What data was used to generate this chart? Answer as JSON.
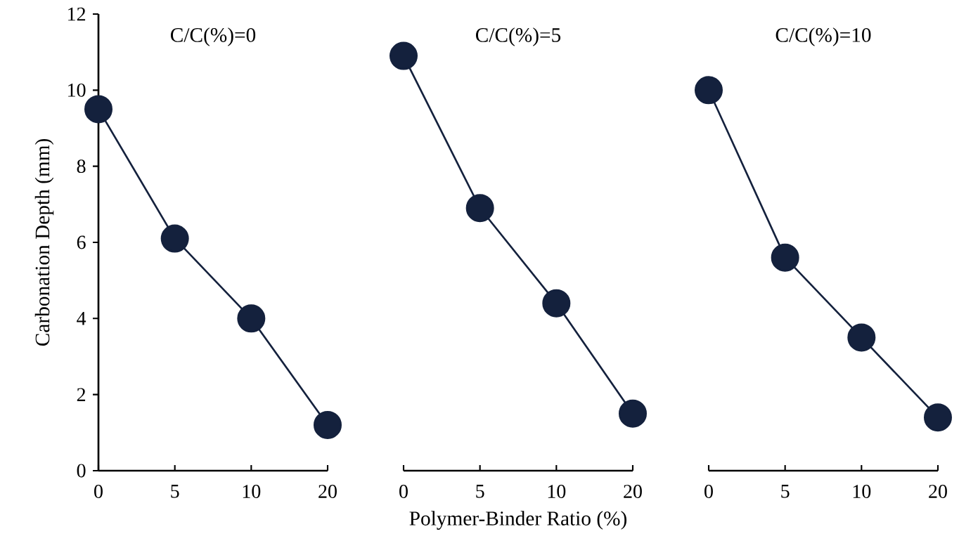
{
  "chart_data": [
    {
      "type": "line",
      "title": "C/C(%)=0",
      "ylabel": "Carbonation Depth (mm)",
      "categories": [
        "0",
        "5",
        "10",
        "20"
      ],
      "values": [
        9.5,
        6.1,
        4.0,
        1.2
      ],
      "color": "#14213d",
      "marker": "circle",
      "ylim": [
        0,
        12
      ],
      "yticks": [
        0,
        2,
        4,
        6,
        8,
        10,
        12
      ]
    },
    {
      "type": "line",
      "title": "C/C(%)=5",
      "xlabel": "Polymer-Binder Ratio (%)",
      "categories": [
        "0",
        "5",
        "10",
        "20"
      ],
      "values": [
        10.9,
        6.9,
        4.4,
        1.5
      ],
      "color": "#14213d",
      "marker": "circle",
      "ylim": [
        0,
        12
      ],
      "yticks": [
        0,
        2,
        4,
        6,
        8,
        10,
        12
      ],
      "tick_labels": "x"
    },
    {
      "type": "line",
      "title": "C/C(%)=10",
      "categories": [
        "0",
        "5",
        "10",
        "20"
      ],
      "values": [
        10.0,
        5.6,
        3.5,
        1.4
      ],
      "color": "#14213d",
      "marker": "circle",
      "ylim": [
        0,
        12
      ],
      "yticks": [
        0,
        2,
        4,
        6,
        8,
        10,
        12
      ],
      "tick_labels": "x"
    }
  ]
}
